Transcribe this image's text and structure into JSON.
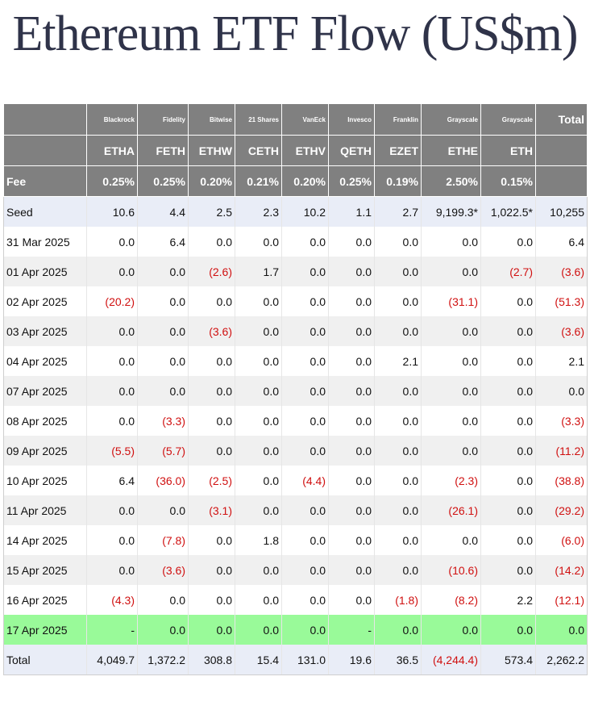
{
  "title": "Ethereum ETF Flow (US$m)",
  "colors": {
    "header_bg": "#808080",
    "negative": "#d01010",
    "highlight_row": "#99fa99",
    "seed_total_row": "#e9edf7"
  },
  "header": {
    "issuers": [
      "Blackrock",
      "Fidelity",
      "Bitwise",
      "21 Shares",
      "VanEck",
      "Invesco",
      "Franklin",
      "Grayscale",
      "Grayscale"
    ],
    "total_label": "Total",
    "tickers": [
      "ETHA",
      "FETH",
      "ETHW",
      "CETH",
      "ETHV",
      "QETH",
      "EZET",
      "ETHE",
      "ETH"
    ],
    "fee_label": "Fee",
    "fees": [
      "0.25%",
      "0.25%",
      "0.20%",
      "0.21%",
      "0.20%",
      "0.25%",
      "0.19%",
      "2.50%",
      "0.15%"
    ]
  },
  "rows": [
    {
      "label": "Seed",
      "values": [
        "10.6",
        "4.4",
        "2.5",
        "2.3",
        "10.2",
        "1.1",
        "2.7",
        "9,199.3*",
        "1,022.5*"
      ],
      "total": "10,255"
    },
    {
      "label": "31 Mar 2025",
      "values": [
        "0.0",
        "6.4",
        "0.0",
        "0.0",
        "0.0",
        "0.0",
        "0.0",
        "0.0",
        "0.0"
      ],
      "total": "6.4"
    },
    {
      "label": "01 Apr 2025",
      "values": [
        "0.0",
        "0.0",
        "(2.6)",
        "1.7",
        "0.0",
        "0.0",
        "0.0",
        "0.0",
        "(2.7)"
      ],
      "total": "(3.6)"
    },
    {
      "label": "02 Apr 2025",
      "values": [
        "(20.2)",
        "0.0",
        "0.0",
        "0.0",
        "0.0",
        "0.0",
        "0.0",
        "(31.1)",
        "0.0"
      ],
      "total": "(51.3)"
    },
    {
      "label": "03 Apr 2025",
      "values": [
        "0.0",
        "0.0",
        "(3.6)",
        "0.0",
        "0.0",
        "0.0",
        "0.0",
        "0.0",
        "0.0"
      ],
      "total": "(3.6)"
    },
    {
      "label": "04 Apr 2025",
      "values": [
        "0.0",
        "0.0",
        "0.0",
        "0.0",
        "0.0",
        "0.0",
        "2.1",
        "0.0",
        "0.0"
      ],
      "total": "2.1"
    },
    {
      "label": "07 Apr 2025",
      "values": [
        "0.0",
        "0.0",
        "0.0",
        "0.0",
        "0.0",
        "0.0",
        "0.0",
        "0.0",
        "0.0"
      ],
      "total": "0.0"
    },
    {
      "label": "08 Apr 2025",
      "values": [
        "0.0",
        "(3.3)",
        "0.0",
        "0.0",
        "0.0",
        "0.0",
        "0.0",
        "0.0",
        "0.0"
      ],
      "total": "(3.3)"
    },
    {
      "label": "09 Apr 2025",
      "values": [
        "(5.5)",
        "(5.7)",
        "0.0",
        "0.0",
        "0.0",
        "0.0",
        "0.0",
        "0.0",
        "0.0"
      ],
      "total": "(11.2)"
    },
    {
      "label": "10 Apr 2025",
      "values": [
        "6.4",
        "(36.0)",
        "(2.5)",
        "0.0",
        "(4.4)",
        "0.0",
        "0.0",
        "(2.3)",
        "0.0"
      ],
      "total": "(38.8)"
    },
    {
      "label": "11 Apr 2025",
      "values": [
        "0.0",
        "0.0",
        "(3.1)",
        "0.0",
        "0.0",
        "0.0",
        "0.0",
        "(26.1)",
        "0.0"
      ],
      "total": "(29.2)"
    },
    {
      "label": "14 Apr 2025",
      "values": [
        "0.0",
        "(7.8)",
        "0.0",
        "1.8",
        "0.0",
        "0.0",
        "0.0",
        "0.0",
        "0.0"
      ],
      "total": "(6.0)"
    },
    {
      "label": "15 Apr 2025",
      "values": [
        "0.0",
        "(3.6)",
        "0.0",
        "0.0",
        "0.0",
        "0.0",
        "0.0",
        "(10.6)",
        "0.0"
      ],
      "total": "(14.2)"
    },
    {
      "label": "16 Apr 2025",
      "values": [
        "(4.3)",
        "0.0",
        "0.0",
        "0.0",
        "0.0",
        "0.0",
        "(1.8)",
        "(8.2)",
        "2.2"
      ],
      "total": "(12.1)"
    },
    {
      "label": "17 Apr 2025",
      "values": [
        "-",
        "0.0",
        "0.0",
        "0.0",
        "0.0",
        "-",
        "0.0",
        "0.0",
        "0.0"
      ],
      "total": "0.0"
    },
    {
      "label": "Total",
      "values": [
        "4,049.7",
        "1,372.2",
        "308.8",
        "15.4",
        "131.0",
        "19.6",
        "36.5",
        "(4,244.4)",
        "573.4"
      ],
      "total": "2,262.2"
    }
  ]
}
